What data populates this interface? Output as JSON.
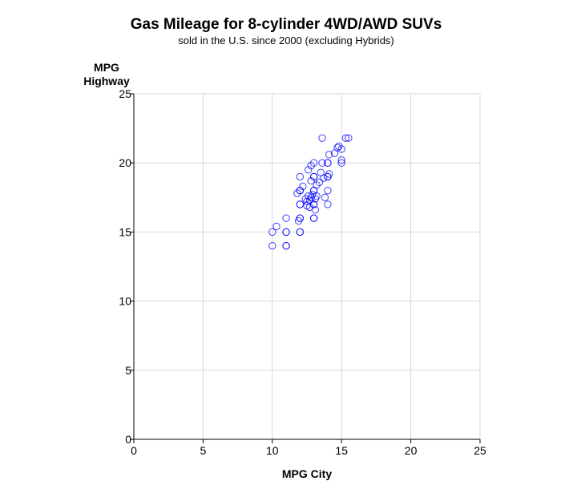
{
  "chart_data": {
    "type": "scatter",
    "title": "Gas Mileage for 8-cylinder 4WD/AWD SUVs",
    "subtitle": "sold in the U.S. since 2000 (excluding Hybrids)",
    "xlabel": "MPG City",
    "ylabel_lines": [
      "MPG",
      "Highway"
    ],
    "xlim": [
      0,
      25
    ],
    "ylim": [
      0,
      25
    ],
    "xticks": [
      0,
      5,
      10,
      15,
      20,
      25
    ],
    "yticks": [
      0,
      5,
      10,
      15,
      20,
      25
    ],
    "grid": true,
    "marker": "open-circle",
    "marker_color": "#0000ff",
    "gridline_color": "#d8d8d8",
    "points": [
      {
        "x": 10,
        "y": 14
      },
      {
        "x": 10,
        "y": 15
      },
      {
        "x": 10.3,
        "y": 15.4
      },
      {
        "x": 11,
        "y": 14
      },
      {
        "x": 11,
        "y": 14
      },
      {
        "x": 11,
        "y": 15
      },
      {
        "x": 11,
        "y": 15
      },
      {
        "x": 11,
        "y": 16
      },
      {
        "x": 12,
        "y": 15
      },
      {
        "x": 12,
        "y": 15
      },
      {
        "x": 12,
        "y": 16
      },
      {
        "x": 12,
        "y": 16
      },
      {
        "x": 12,
        "y": 17
      },
      {
        "x": 12,
        "y": 17
      },
      {
        "x": 12,
        "y": 18
      },
      {
        "x": 12,
        "y": 18
      },
      {
        "x": 12,
        "y": 19
      },
      {
        "x": 11.8,
        "y": 17.8
      },
      {
        "x": 11.9,
        "y": 15.8
      },
      {
        "x": 12.2,
        "y": 18.3
      },
      {
        "x": 12.4,
        "y": 17.4
      },
      {
        "x": 12.5,
        "y": 17.2
      },
      {
        "x": 12.6,
        "y": 17.6
      },
      {
        "x": 12.7,
        "y": 17.3
      },
      {
        "x": 12.8,
        "y": 17.5
      },
      {
        "x": 12.9,
        "y": 17.7
      },
      {
        "x": 12.5,
        "y": 16.9
      },
      {
        "x": 12.7,
        "y": 16.8
      },
      {
        "x": 12.8,
        "y": 18.7
      },
      {
        "x": 12.6,
        "y": 19.5
      },
      {
        "x": 12.8,
        "y": 19.8
      },
      {
        "x": 13,
        "y": 16
      },
      {
        "x": 13,
        "y": 16
      },
      {
        "x": 13,
        "y": 17
      },
      {
        "x": 13,
        "y": 17
      },
      {
        "x": 13,
        "y": 18
      },
      {
        "x": 13,
        "y": 18
      },
      {
        "x": 13,
        "y": 19
      },
      {
        "x": 13,
        "y": 19
      },
      {
        "x": 13,
        "y": 20
      },
      {
        "x": 13.1,
        "y": 17.4
      },
      {
        "x": 13.2,
        "y": 17.6
      },
      {
        "x": 13.2,
        "y": 18.4
      },
      {
        "x": 13.1,
        "y": 16.6
      },
      {
        "x": 13.4,
        "y": 18.6
      },
      {
        "x": 13.5,
        "y": 19.3
      },
      {
        "x": 13.6,
        "y": 20
      },
      {
        "x": 13.6,
        "y": 21.8
      },
      {
        "x": 13.7,
        "y": 18.9
      },
      {
        "x": 13.8,
        "y": 17.5
      },
      {
        "x": 14,
        "y": 17
      },
      {
        "x": 14,
        "y": 18
      },
      {
        "x": 14,
        "y": 19
      },
      {
        "x": 14,
        "y": 19
      },
      {
        "x": 14,
        "y": 20
      },
      {
        "x": 14,
        "y": 20
      },
      {
        "x": 14.1,
        "y": 20.6
      },
      {
        "x": 14.1,
        "y": 19.2
      },
      {
        "x": 14.5,
        "y": 20.7
      },
      {
        "x": 14.7,
        "y": 21.1
      },
      {
        "x": 14.8,
        "y": 21.2
      },
      {
        "x": 15,
        "y": 20
      },
      {
        "x": 15,
        "y": 21
      },
      {
        "x": 15,
        "y": 20.2
      },
      {
        "x": 15.3,
        "y": 21.8
      },
      {
        "x": 15.5,
        "y": 21.8
      }
    ]
  }
}
